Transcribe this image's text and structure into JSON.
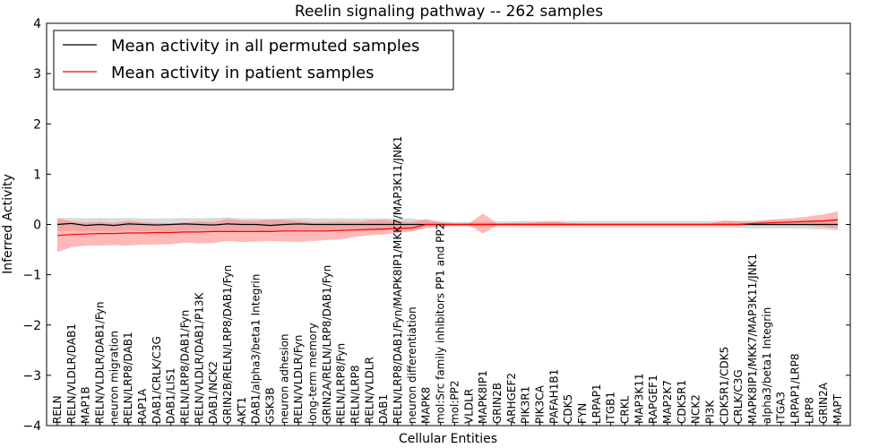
{
  "chart_data": {
    "type": "line",
    "title": "Reelin signaling pathway -- 262 samples",
    "xlabel": "Cellular Entities",
    "ylabel": "Inferred Activity",
    "ylim": [
      -4,
      4
    ],
    "yticks": [
      4,
      3,
      2,
      1,
      0,
      -1,
      -2,
      -3,
      -4
    ],
    "ytick_labels": [
      "4",
      "3",
      "2",
      "1",
      "0",
      "−1",
      "−2",
      "−3",
      "−4"
    ],
    "legend_position": "top-left",
    "categories": [
      "RELN",
      "RELN/VLDLR/DAB1",
      "MAP1B",
      "RELN/VLDLR/DAB1/Fyn",
      "neuron migration",
      "RELN/LRP8/DAB1",
      "RAP1A",
      "DAB1/CRLK/C3G",
      "DAB1/LIS1",
      "RELN/LRP8/DAB1/Fyn",
      "RELN/VLDLR/DAB1/P13K",
      "DAB1/NCK2",
      "GRIN2B/RELN/LRP8/DAB1/Fyn",
      "AKT1",
      "DAB1/alpha3/beta1 Integrin",
      "GSK3B",
      "neuron adhesion",
      "RELN/VLDLR/Fyn",
      "long-term memory",
      "GRIN2A/RELN/LRP8/DAB1/Fyn",
      "RELN/LRP8/Fyn",
      "RELN/LRP8",
      "RELN/VLDLR",
      "DAB1",
      "RELN/LRP8/DAB1/Fyn/MAPK8IP1/MKK7/MAP3K11/JNK1",
      "neuron differentiation",
      "MAPK8",
      "mol:Src family inhibitors PP1 and PP2",
      "mol:PP2",
      "VLDLR",
      "MAPK8IP1",
      "GRIN2B",
      "ARHGEF2",
      "PIK3R1",
      "PIK3CA",
      "PAFAH1B1",
      "CDK5",
      "FYN",
      "LRPAP1",
      "ITGB1",
      "CRKL",
      "MAP3K11",
      "RAPGEF1",
      "MAP2K7",
      "CDK5R1",
      "NCK2",
      "PI3K",
      "CDK5R1/CDK5",
      "CRLK/C3G",
      "MAPK8IP1/MKK7/MAP3K11/JNK1",
      "alpha3/beta1 Integrin",
      "ITGA3",
      "LRPAP1/LRP8",
      "LRP8",
      "GRIN2A",
      "MAPT"
    ],
    "series": [
      {
        "name": "Mean activity in all permuted samples",
        "color": "#000000",
        "band_color": "#bbbbbb",
        "values": [
          0.0,
          0.02,
          -0.02,
          0.0,
          -0.02,
          0.01,
          0.0,
          -0.01,
          0.0,
          0.01,
          0.0,
          -0.01,
          0.01,
          0.0,
          0.0,
          -0.02,
          0.0,
          0.01,
          0.0,
          0.0,
          0.0,
          0.0,
          0.0,
          0.0,
          0.0,
          0.0,
          0.0,
          0.0,
          0.0,
          0.0,
          0.0,
          0.0,
          0.0,
          0.0,
          0.0,
          0.0,
          0.0,
          0.0,
          0.0,
          0.0,
          0.0,
          0.0,
          0.0,
          0.0,
          0.0,
          0.0,
          0.0,
          0.0,
          0.0,
          0.0,
          0.0,
          0.0,
          0.0,
          0.0,
          0.0,
          0.0
        ],
        "lower": [
          -0.13,
          -0.13,
          -0.14,
          -0.13,
          -0.14,
          -0.12,
          -0.13,
          -0.14,
          -0.13,
          -0.12,
          -0.12,
          -0.14,
          -0.12,
          -0.13,
          -0.14,
          -0.15,
          -0.14,
          -0.12,
          -0.12,
          -0.12,
          -0.12,
          -0.12,
          -0.12,
          -0.12,
          -0.12,
          -0.12,
          -0.08,
          -0.06,
          -0.05,
          -0.05,
          -0.05,
          -0.06,
          -0.06,
          -0.07,
          -0.07,
          -0.07,
          -0.07,
          -0.07,
          -0.07,
          -0.07,
          -0.07,
          -0.07,
          -0.07,
          -0.07,
          -0.07,
          -0.07,
          -0.07,
          -0.07,
          -0.07,
          -0.08,
          -0.08,
          -0.08,
          -0.08,
          -0.09,
          -0.1,
          -0.12
        ],
        "upper": [
          0.13,
          0.13,
          0.12,
          0.13,
          0.12,
          0.13,
          0.12,
          0.12,
          0.12,
          0.13,
          0.12,
          0.13,
          0.14,
          0.12,
          0.12,
          0.11,
          0.12,
          0.13,
          0.12,
          0.12,
          0.12,
          0.12,
          0.12,
          0.12,
          0.12,
          0.12,
          0.08,
          0.06,
          0.05,
          0.05,
          0.05,
          0.06,
          0.06,
          0.07,
          0.07,
          0.07,
          0.07,
          0.07,
          0.07,
          0.07,
          0.07,
          0.07,
          0.07,
          0.07,
          0.07,
          0.07,
          0.07,
          0.07,
          0.07,
          0.08,
          0.08,
          0.08,
          0.08,
          0.09,
          0.1,
          0.12
        ]
      },
      {
        "name": "Mean activity in patient samples",
        "color": "#ff0000",
        "band_color": "#ff8080",
        "values": [
          -0.22,
          -0.2,
          -0.19,
          -0.18,
          -0.18,
          -0.17,
          -0.17,
          -0.16,
          -0.16,
          -0.15,
          -0.15,
          -0.14,
          -0.14,
          -0.14,
          -0.14,
          -0.14,
          -0.13,
          -0.13,
          -0.13,
          -0.13,
          -0.12,
          -0.11,
          -0.1,
          -0.09,
          -0.08,
          -0.07,
          0.0,
          0.0,
          0.0,
          0.0,
          0.0,
          0.0,
          0.0,
          0.0,
          0.0,
          0.0,
          0.0,
          0.0,
          0.0,
          0.0,
          0.0,
          0.0,
          0.0,
          0.0,
          0.0,
          0.0,
          0.0,
          0.0,
          0.0,
          0.02,
          0.03,
          0.04,
          0.05,
          0.06,
          0.07,
          0.09
        ],
        "lower": [
          -0.55,
          -0.45,
          -0.42,
          -0.42,
          -0.41,
          -0.42,
          -0.4,
          -0.4,
          -0.39,
          -0.36,
          -0.38,
          -0.37,
          -0.33,
          -0.35,
          -0.34,
          -0.33,
          -0.34,
          -0.35,
          -0.33,
          -0.31,
          -0.3,
          -0.25,
          -0.22,
          -0.2,
          -0.17,
          -0.14,
          -0.06,
          -0.03,
          -0.02,
          -0.02,
          -0.18,
          -0.02,
          -0.02,
          -0.02,
          -0.02,
          -0.02,
          -0.02,
          -0.02,
          -0.02,
          -0.02,
          -0.02,
          -0.02,
          -0.02,
          -0.02,
          -0.02,
          -0.02,
          -0.02,
          -0.02,
          -0.02,
          -0.02,
          -0.02,
          -0.02,
          -0.02,
          -0.03,
          -0.05,
          -0.08
        ],
        "upper": [
          0.12,
          0.06,
          0.04,
          0.05,
          0.03,
          0.07,
          0.05,
          0.03,
          0.02,
          0.04,
          0.06,
          0.05,
          0.11,
          0.08,
          0.07,
          0.1,
          0.09,
          0.07,
          0.04,
          0.05,
          0.06,
          0.05,
          0.08,
          0.09,
          0.06,
          0.05,
          0.11,
          0.04,
          0.02,
          0.02,
          0.22,
          0.02,
          0.03,
          0.03,
          0.05,
          0.06,
          0.03,
          0.02,
          0.02,
          0.02,
          0.02,
          0.02,
          0.02,
          0.02,
          0.02,
          0.02,
          0.02,
          0.08,
          0.06,
          0.05,
          0.09,
          0.11,
          0.13,
          0.16,
          0.2,
          0.26
        ]
      }
    ]
  }
}
